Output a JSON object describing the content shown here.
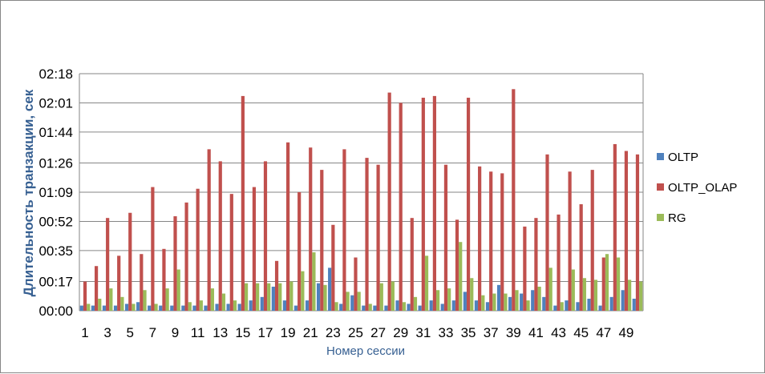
{
  "chart_data": {
    "type": "bar",
    "xlabel": "Номер сессии",
    "ylabel": "Длительность транзакции, сек",
    "ylim": [
      0,
      138
    ],
    "y_ticks": [
      0,
      17,
      35,
      52,
      69,
      86,
      104,
      121,
      138
    ],
    "y_tick_labels": [
      "00:00",
      "00:17",
      "00:35",
      "00:52",
      "01:09",
      "01:26",
      "01:44",
      "02:01",
      "02:18"
    ],
    "categories": [
      "1",
      "2",
      "3",
      "4",
      "5",
      "6",
      "7",
      "8",
      "9",
      "10",
      "11",
      "12",
      "13",
      "14",
      "15",
      "16",
      "17",
      "18",
      "19",
      "20",
      "21",
      "22",
      "23",
      "24",
      "25",
      "26",
      "27",
      "28",
      "29",
      "30",
      "31",
      "32",
      "33",
      "34",
      "35",
      "36",
      "37",
      "38",
      "39",
      "40",
      "41",
      "42",
      "43",
      "44",
      "45",
      "46",
      "47",
      "48",
      "49",
      "50"
    ],
    "x_tick_labels": [
      "1",
      "3",
      "5",
      "7",
      "9",
      "11",
      "13",
      "15",
      "17",
      "19",
      "21",
      "23",
      "25",
      "27",
      "29",
      "31",
      "33",
      "35",
      "37",
      "39",
      "41",
      "43",
      "45",
      "47",
      "49"
    ],
    "grid": true,
    "legend_position": "right",
    "series": [
      {
        "name": "OLTP",
        "color": "#4F81BD",
        "values": [
          3,
          3,
          3,
          3,
          4,
          5,
          3,
          3,
          3,
          3,
          3,
          3,
          4,
          4,
          4,
          6,
          8,
          14,
          6,
          3,
          6,
          16,
          25,
          4,
          9,
          3,
          3,
          3,
          6,
          4,
          3,
          6,
          4,
          6,
          11,
          6,
          5,
          15,
          8,
          10,
          12,
          8,
          3,
          6,
          5,
          7,
          3,
          8,
          12,
          7
        ]
      },
      {
        "name": "OLTP_OLAP",
        "color": "#C0504D",
        "values": [
          17,
          26,
          54,
          32,
          57,
          33,
          72,
          36,
          55,
          63,
          71,
          94,
          87,
          68,
          125,
          72,
          87,
          29,
          98,
          69,
          95,
          82,
          50,
          94,
          31,
          89,
          85,
          127,
          121,
          54,
          124,
          125,
          85,
          53,
          124,
          84,
          81,
          80,
          129,
          49,
          54,
          91,
          56,
          81,
          62,
          82,
          31,
          97,
          93,
          91
        ]
      },
      {
        "name": "RG",
        "color": "#9BBB59",
        "values": [
          4,
          7,
          13,
          8,
          4,
          12,
          4,
          13,
          24,
          5,
          6,
          13,
          10,
          6,
          16,
          16,
          16,
          16,
          17,
          23,
          34,
          15,
          5,
          11,
          11,
          4,
          16,
          17,
          5,
          8,
          32,
          12,
          13,
          40,
          19,
          9,
          10,
          10,
          12,
          6,
          14,
          25,
          5,
          24,
          19,
          18,
          33,
          31,
          18,
          17
        ]
      }
    ]
  }
}
